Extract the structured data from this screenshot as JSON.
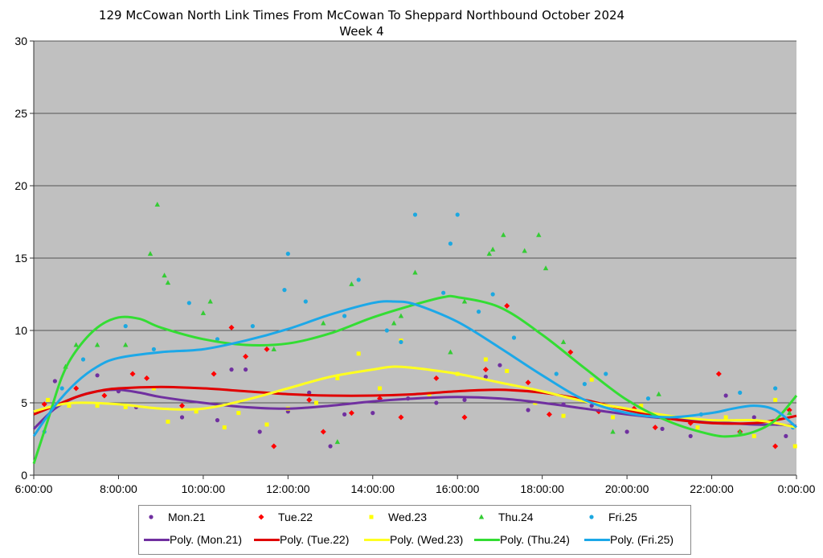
{
  "chart_data": {
    "type": "scatter",
    "title": "129 McCowan North Link Times From McCowan To Sheppard Northbound October 2024",
    "subtitle": "Week 4",
    "xlabel": "",
    "ylabel": "",
    "xlim": [
      "6:00:00",
      "0:00:00"
    ],
    "ylim": [
      0,
      30
    ],
    "x_ticks": [
      "6:00:00",
      "8:00:00",
      "10:00:00",
      "12:00:00",
      "14:00:00",
      "16:00:00",
      "18:00:00",
      "20:00:00",
      "22:00:00",
      "0:00:00"
    ],
    "y_ticks": [
      "0",
      "5",
      "10",
      "15",
      "20",
      "25",
      "30"
    ],
    "grid": "horizontal",
    "plot_background": "#C0C0C0",
    "legend_placement": "bottom",
    "series": [
      {
        "name": "Mon.21",
        "marker": "circle",
        "color": "#7030A0",
        "points": [
          [
            "6:30",
            6.5
          ],
          [
            "7:30",
            6.9
          ],
          [
            "8:00",
            5.8
          ],
          [
            "8:25",
            4.7
          ],
          [
            "9:30",
            4.0
          ],
          [
            "10:20",
            3.8
          ],
          [
            "10:40",
            7.3
          ],
          [
            "11:00",
            7.3
          ],
          [
            "11:20",
            3.0
          ],
          [
            "12:00",
            4.4
          ],
          [
            "12:30",
            5.7
          ],
          [
            "13:00",
            2.0
          ],
          [
            "13:20",
            4.2
          ],
          [
            "14:00",
            4.3
          ],
          [
            "14:50",
            5.3
          ],
          [
            "15:30",
            5.0
          ],
          [
            "16:10",
            5.2
          ],
          [
            "16:40",
            6.8
          ],
          [
            "17:00",
            7.6
          ],
          [
            "17:40",
            4.5
          ],
          [
            "18:30",
            4.9
          ],
          [
            "19:10",
            4.8
          ],
          [
            "20:00",
            3.0
          ],
          [
            "20:50",
            3.2
          ],
          [
            "21:30",
            2.7
          ],
          [
            "22:20",
            5.5
          ],
          [
            "23:00",
            4.0
          ],
          [
            "23:45",
            2.7
          ]
        ]
      },
      {
        "name": "Tue.22",
        "marker": "diamond",
        "color": "#FF0000",
        "points": [
          [
            "6:15",
            4.9
          ],
          [
            "7:00",
            6.0
          ],
          [
            "7:40",
            5.5
          ],
          [
            "8:20",
            7.0
          ],
          [
            "8:40",
            6.7
          ],
          [
            "9:30",
            4.8
          ],
          [
            "10:15",
            7.0
          ],
          [
            "10:40",
            10.2
          ],
          [
            "11:00",
            8.2
          ],
          [
            "11:30",
            8.7
          ],
          [
            "11:40",
            2.0
          ],
          [
            "12:30",
            5.2
          ],
          [
            "12:50",
            3.0
          ],
          [
            "13:30",
            4.3
          ],
          [
            "14:10",
            5.3
          ],
          [
            "14:40",
            4.0
          ],
          [
            "15:30",
            6.7
          ],
          [
            "16:10",
            4.0
          ],
          [
            "16:40",
            7.3
          ],
          [
            "17:10",
            11.7
          ],
          [
            "17:40",
            6.4
          ],
          [
            "18:10",
            4.2
          ],
          [
            "18:40",
            8.5
          ],
          [
            "19:20",
            4.4
          ],
          [
            "20:10",
            4.6
          ],
          [
            "20:40",
            3.3
          ],
          [
            "21:30",
            3.6
          ],
          [
            "22:10",
            7.0
          ],
          [
            "22:40",
            3.0
          ],
          [
            "23:30",
            2.0
          ],
          [
            "23:50",
            4.5
          ]
        ]
      },
      {
        "name": "Wed.23",
        "marker": "square",
        "color": "#FFFF00",
        "points": [
          [
            "6:20",
            5.2
          ],
          [
            "6:50",
            4.8
          ],
          [
            "7:30",
            4.8
          ],
          [
            "8:10",
            4.7
          ],
          [
            "8:50",
            6.0
          ],
          [
            "9:10",
            3.7
          ],
          [
            "9:50",
            4.4
          ],
          [
            "10:30",
            3.3
          ],
          [
            "10:50",
            4.3
          ],
          [
            "11:30",
            3.5
          ],
          [
            "12:00",
            4.6
          ],
          [
            "12:40",
            5.0
          ],
          [
            "13:10",
            6.7
          ],
          [
            "13:40",
            8.4
          ],
          [
            "14:10",
            6.0
          ],
          [
            "14:40",
            9.3
          ],
          [
            "15:20",
            5.6
          ],
          [
            "16:00",
            7.0
          ],
          [
            "16:40",
            8.0
          ],
          [
            "17:10",
            7.2
          ],
          [
            "17:50",
            5.0
          ],
          [
            "18:30",
            4.1
          ],
          [
            "19:10",
            6.6
          ],
          [
            "19:40",
            4.0
          ],
          [
            "20:20",
            4.8
          ],
          [
            "21:00",
            3.8
          ],
          [
            "21:40",
            3.3
          ],
          [
            "22:20",
            4.0
          ],
          [
            "23:00",
            2.7
          ],
          [
            "23:30",
            5.2
          ],
          [
            "23:58",
            2.0
          ]
        ]
      },
      {
        "name": "Thu.24",
        "marker": "triangle",
        "color": "#33CC33",
        "points": [
          [
            "6:45",
            7.5
          ],
          [
            "7:00",
            9.0
          ],
          [
            "7:30",
            9.0
          ],
          [
            "8:10",
            9.0
          ],
          [
            "8:45",
            15.3
          ],
          [
            "8:55",
            18.7
          ],
          [
            "9:05",
            13.8
          ],
          [
            "9:10",
            13.3
          ],
          [
            "10:00",
            11.2
          ],
          [
            "10:10",
            12.0
          ],
          [
            "11:40",
            8.7
          ],
          [
            "12:50",
            10.5
          ],
          [
            "13:10",
            2.3
          ],
          [
            "13:30",
            13.2
          ],
          [
            "14:30",
            10.5
          ],
          [
            "14:40",
            11.0
          ],
          [
            "15:00",
            14.0
          ],
          [
            "15:50",
            8.5
          ],
          [
            "16:10",
            12.0
          ],
          [
            "16:45",
            15.3
          ],
          [
            "16:50",
            15.6
          ],
          [
            "17:05",
            16.6
          ],
          [
            "17:35",
            15.5
          ],
          [
            "17:55",
            16.6
          ],
          [
            "18:05",
            14.3
          ],
          [
            "18:30",
            9.2
          ],
          [
            "19:40",
            3.0
          ],
          [
            "20:45",
            5.6
          ],
          [
            "22:40",
            3.0
          ],
          [
            "23:50",
            4.3
          ]
        ]
      },
      {
        "name": "Fri.25",
        "marker": "circle",
        "color": "#1CA8E0",
        "points": [
          [
            "6:15",
            3.0
          ],
          [
            "6:40",
            6.0
          ],
          [
            "7:10",
            8.0
          ],
          [
            "8:10",
            10.3
          ],
          [
            "8:50",
            8.7
          ],
          [
            "9:40",
            11.9
          ],
          [
            "10:20",
            9.4
          ],
          [
            "11:10",
            10.3
          ],
          [
            "11:55",
            12.8
          ],
          [
            "12:00",
            15.3
          ],
          [
            "12:25",
            12.0
          ],
          [
            "13:20",
            11.0
          ],
          [
            "13:40",
            13.5
          ],
          [
            "14:20",
            10.0
          ],
          [
            "14:40",
            9.2
          ],
          [
            "15:00",
            18.0
          ],
          [
            "15:40",
            12.6
          ],
          [
            "15:50",
            16.0
          ],
          [
            "16:00",
            18.0
          ],
          [
            "16:30",
            11.3
          ],
          [
            "16:50",
            12.5
          ],
          [
            "17:20",
            9.5
          ],
          [
            "18:20",
            7.0
          ],
          [
            "19:00",
            6.3
          ],
          [
            "19:30",
            7.0
          ],
          [
            "20:30",
            5.3
          ],
          [
            "21:45",
            4.2
          ],
          [
            "22:40",
            5.7
          ],
          [
            "23:30",
            6.0
          ],
          [
            "23:55",
            3.3
          ]
        ]
      }
    ],
    "trendlines": [
      {
        "name": "Poly. (Mon.21)",
        "color": "#7030A0",
        "points": [
          [
            "6:00",
            3.2
          ],
          [
            "6:30",
            4.6
          ],
          [
            "7:00",
            5.4
          ],
          [
            "7:30",
            5.8
          ],
          [
            "8:00",
            5.9
          ],
          [
            "8:30",
            5.7
          ],
          [
            "9:00",
            5.4
          ],
          [
            "10:00",
            5.0
          ],
          [
            "11:00",
            4.7
          ],
          [
            "12:00",
            4.6
          ],
          [
            "13:00",
            4.8
          ],
          [
            "14:00",
            5.1
          ],
          [
            "15:00",
            5.3
          ],
          [
            "16:00",
            5.4
          ],
          [
            "17:00",
            5.3
          ],
          [
            "18:00",
            5.0
          ],
          [
            "19:00",
            4.6
          ],
          [
            "20:00",
            4.2
          ],
          [
            "21:00",
            3.9
          ],
          [
            "22:00",
            3.7
          ],
          [
            "23:00",
            3.5
          ],
          [
            "23:30",
            3.5
          ],
          [
            "24:00",
            3.4
          ]
        ]
      },
      {
        "name": "Poly. (Tue.22)",
        "color": "#E00000",
        "points": [
          [
            "6:00",
            4.2
          ],
          [
            "6:30",
            4.8
          ],
          [
            "7:00",
            5.4
          ],
          [
            "7:30",
            5.8
          ],
          [
            "8:00",
            6.0
          ],
          [
            "9:00",
            6.1
          ],
          [
            "10:00",
            6.0
          ],
          [
            "11:00",
            5.8
          ],
          [
            "12:00",
            5.6
          ],
          [
            "13:00",
            5.5
          ],
          [
            "14:00",
            5.5
          ],
          [
            "15:00",
            5.6
          ],
          [
            "16:00",
            5.8
          ],
          [
            "17:00",
            5.9
          ],
          [
            "18:00",
            5.7
          ],
          [
            "19:00",
            5.2
          ],
          [
            "20:00",
            4.5
          ],
          [
            "21:00",
            3.9
          ],
          [
            "22:00",
            3.6
          ],
          [
            "23:00",
            3.6
          ],
          [
            "23:30",
            3.8
          ],
          [
            "24:00",
            4.1
          ]
        ]
      },
      {
        "name": "Poly. (Wed.23)",
        "color": "#FFFF20",
        "points": [
          [
            "6:00",
            4.4
          ],
          [
            "6:30",
            4.8
          ],
          [
            "7:00",
            5.0
          ],
          [
            "8:00",
            4.9
          ],
          [
            "9:00",
            4.6
          ],
          [
            "10:00",
            4.6
          ],
          [
            "11:00",
            5.2
          ],
          [
            "12:00",
            6.0
          ],
          [
            "13:00",
            6.8
          ],
          [
            "14:00",
            7.3
          ],
          [
            "14:30",
            7.5
          ],
          [
            "15:00",
            7.4
          ],
          [
            "16:00",
            7.0
          ],
          [
            "17:00",
            6.4
          ],
          [
            "18:00",
            5.8
          ],
          [
            "19:00",
            5.1
          ],
          [
            "20:00",
            4.6
          ],
          [
            "21:00",
            4.1
          ],
          [
            "22:00",
            3.8
          ],
          [
            "23:00",
            3.8
          ],
          [
            "23:30",
            3.6
          ],
          [
            "24:00",
            3.3
          ]
        ]
      },
      {
        "name": "Poly. (Thu.24)",
        "color": "#33DD33",
        "points": [
          [
            "6:00",
            0.8
          ],
          [
            "6:20",
            3.8
          ],
          [
            "6:40",
            6.8
          ],
          [
            "7:00",
            8.6
          ],
          [
            "7:30",
            10.2
          ],
          [
            "8:00",
            10.9
          ],
          [
            "8:30",
            10.8
          ],
          [
            "9:00",
            10.2
          ],
          [
            "10:00",
            9.4
          ],
          [
            "11:00",
            9.0
          ],
          [
            "12:00",
            9.1
          ],
          [
            "13:00",
            9.8
          ],
          [
            "14:00",
            10.9
          ],
          [
            "15:00",
            11.8
          ],
          [
            "15:40",
            12.3
          ],
          [
            "16:00",
            12.3
          ],
          [
            "17:00",
            11.6
          ],
          [
            "18:00",
            9.7
          ],
          [
            "19:00",
            7.4
          ],
          [
            "20:00",
            5.2
          ],
          [
            "21:00",
            3.7
          ],
          [
            "22:00",
            2.8
          ],
          [
            "22:30",
            2.7
          ],
          [
            "23:00",
            3.0
          ],
          [
            "23:30",
            3.8
          ],
          [
            "24:00",
            5.5
          ]
        ]
      },
      {
        "name": "Poly. (Fri.25)",
        "color": "#1CA8E8",
        "points": [
          [
            "6:00",
            2.7
          ],
          [
            "6:30",
            4.8
          ],
          [
            "7:00",
            6.4
          ],
          [
            "7:30",
            7.5
          ],
          [
            "8:00",
            8.1
          ],
          [
            "9:00",
            8.5
          ],
          [
            "10:00",
            8.7
          ],
          [
            "11:00",
            9.3
          ],
          [
            "12:00",
            10.1
          ],
          [
            "13:00",
            11.1
          ],
          [
            "14:00",
            11.9
          ],
          [
            "14:30",
            12.0
          ],
          [
            "15:00",
            11.8
          ],
          [
            "16:00",
            10.6
          ],
          [
            "17:00",
            8.8
          ],
          [
            "18:00",
            6.9
          ],
          [
            "19:00",
            5.2
          ],
          [
            "20:00",
            4.3
          ],
          [
            "21:00",
            4.0
          ],
          [
            "22:00",
            4.3
          ],
          [
            "22:30",
            4.6
          ],
          [
            "23:00",
            4.8
          ],
          [
            "23:30",
            4.5
          ],
          [
            "24:00",
            3.3
          ]
        ]
      }
    ]
  }
}
